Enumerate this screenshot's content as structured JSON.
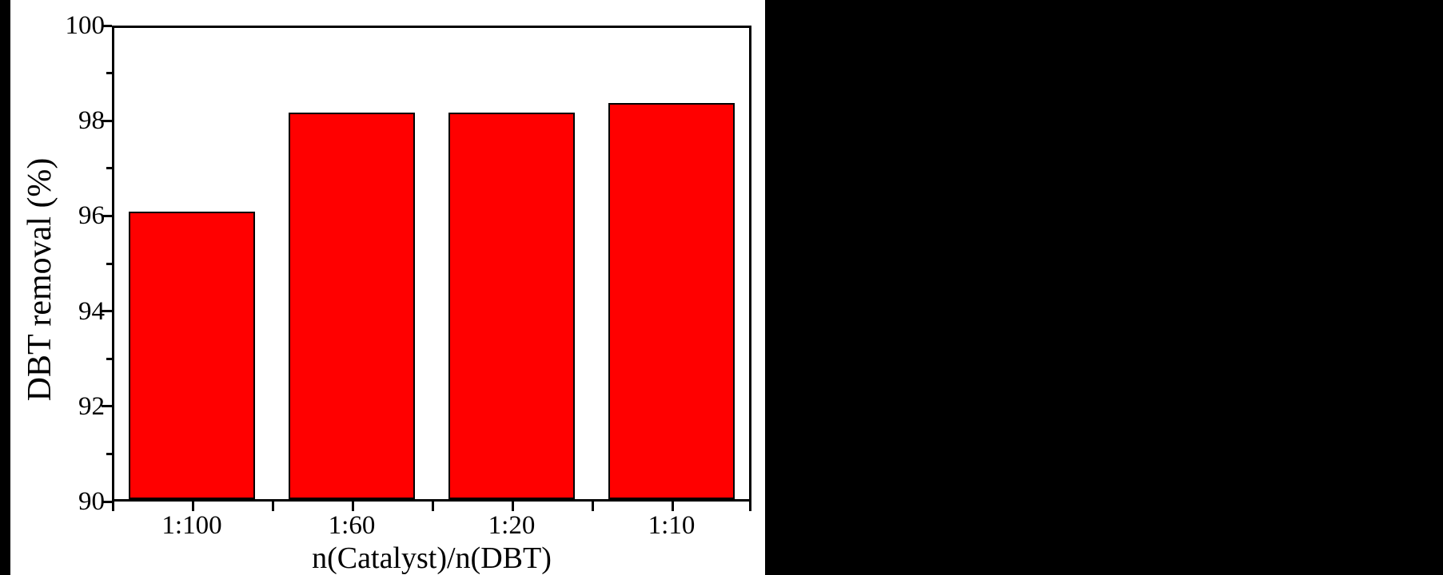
{
  "figure": {
    "canvas_background": "#000000",
    "panel_background": "#ffffff",
    "axis_color": "#000000",
    "text_color": "#000000"
  },
  "chart_data": {
    "type": "bar",
    "title": "",
    "xlabel": "n(Catalyst)/n(DBT)",
    "ylabel": "DBT removal (%)",
    "categories": [
      "1:100",
      "1:60",
      "1:20",
      "1:10"
    ],
    "values": [
      96.1,
      98.2,
      98.2,
      98.4
    ],
    "ylim": [
      90,
      100
    ],
    "y_major_tick_step": 2,
    "y_minor_tick_step": 1,
    "y_tick_labels": [
      "90",
      "92",
      "94",
      "96",
      "98",
      "100"
    ],
    "bar_color": "#ff0000",
    "bar_border_color": "#000000",
    "grid": false,
    "legend": false
  }
}
